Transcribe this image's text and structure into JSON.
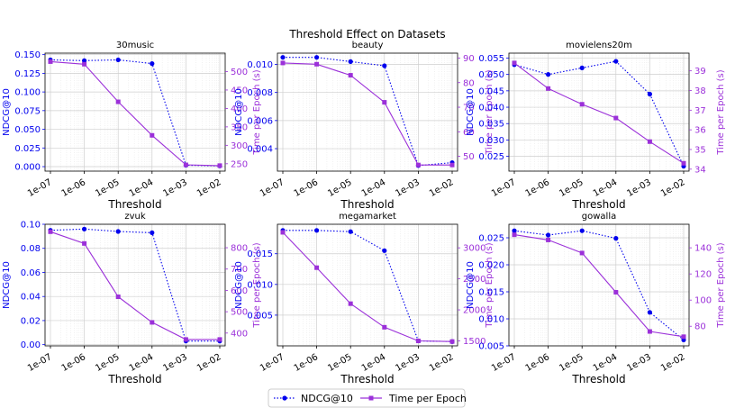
{
  "figure": {
    "title": "Threshold Effect on Datasets",
    "legend": [
      {
        "label": "NDCG@10",
        "color": "#0000ee",
        "style": "dotted",
        "marker": "circle"
      },
      {
        "label": "Time per Epoch",
        "color": "#9b30d9",
        "style": "solid",
        "marker": "square"
      }
    ],
    "legend_placement": "bottom-center"
  },
  "chart_data": [
    {
      "type": "line",
      "title": "30music",
      "categories": [
        "1e-07",
        "1e-06",
        "1e-05",
        "1e-04",
        "1e-03",
        "1e-02"
      ],
      "xlabel": "Threshold",
      "ylabel": "NDCG@10",
      "y2label": "Time per Epoch (s)",
      "ylim": [
        -0.006,
        0.152
      ],
      "yticks": [
        0.0,
        0.025,
        0.05,
        0.075,
        0.1,
        0.125,
        0.15
      ],
      "ytick_labels": [
        "0.000",
        "0.025",
        "0.050",
        "0.075",
        "0.100",
        "0.125",
        "0.150"
      ],
      "y2lim": [
        230,
        550
      ],
      "y2ticks": [
        250,
        300,
        350,
        400,
        450,
        500
      ],
      "series": [
        {
          "name": "NDCG@10",
          "axis": "left",
          "values": [
            0.143,
            0.142,
            0.143,
            0.138,
            0.002,
            0.001
          ]
        },
        {
          "name": "Time per Epoch",
          "axis": "right",
          "values": [
            527,
            520,
            418,
            327,
            247,
            245
          ]
        }
      ]
    },
    {
      "type": "line",
      "title": "beauty",
      "categories": [
        "1e-07",
        "1e-06",
        "1e-05",
        "1e-04",
        "1e-03",
        "1e-02"
      ],
      "xlabel": "Threshold",
      "ylabel": "NDCG@10",
      "y2label": "Time per Epoch (s)",
      "ylim": [
        0.0024,
        0.0108
      ],
      "yticks": [
        0.004,
        0.006,
        0.008,
        0.01
      ],
      "ytick_labels": [
        "0.004",
        "0.006",
        "0.008",
        "0.010"
      ],
      "y2lim": [
        44,
        92
      ],
      "y2ticks": [
        50,
        60,
        70,
        80,
        90
      ],
      "series": [
        {
          "name": "NDCG@10",
          "axis": "left",
          "values": [
            0.0105,
            0.0105,
            0.0102,
            0.0099,
            0.0028,
            0.003
          ]
        },
        {
          "name": "Time per Epoch",
          "axis": "right",
          "values": [
            88,
            87.5,
            83,
            72,
            46.5,
            46.5
          ]
        }
      ]
    },
    {
      "type": "line",
      "title": "movielens20m",
      "categories": [
        "1e-07",
        "1e-06",
        "1e-05",
        "1e-04",
        "1e-03",
        "1e-02"
      ],
      "xlabel": "Threshold",
      "ylabel": "NDCG@10",
      "y2label": "Time per Epoch (s)",
      "ylim": [
        0.0205,
        0.0565
      ],
      "yticks": [
        0.025,
        0.03,
        0.035,
        0.04,
        0.045,
        0.05,
        0.055
      ],
      "ytick_labels": [
        "0.025",
        "0.030",
        "0.035",
        "0.040",
        "0.045",
        "0.050",
        "0.055"
      ],
      "y2lim": [
        33.9,
        39.9
      ],
      "y2ticks": [
        34,
        35,
        36,
        37,
        38,
        39
      ],
      "series": [
        {
          "name": "NDCG@10",
          "axis": "left",
          "values": [
            0.053,
            0.05,
            0.052,
            0.054,
            0.044,
            0.022
          ]
        },
        {
          "name": "Time per Epoch",
          "axis": "right",
          "values": [
            39.4,
            38.1,
            37.3,
            36.6,
            35.4,
            34.3
          ]
        }
      ]
    },
    {
      "type": "line",
      "title": "zvuk",
      "categories": [
        "1e-07",
        "1e-06",
        "1e-05",
        "1e-04",
        "1e-03",
        "1e-02"
      ],
      "xlabel": "Threshold",
      "ylabel": "NDCG@10",
      "y2label": "Time per Epoch (s)",
      "ylim": [
        -0.001,
        0.1
      ],
      "yticks": [
        0.0,
        0.02,
        0.04,
        0.06,
        0.08,
        0.1
      ],
      "ytick_labels": [
        "0.00",
        "0.02",
        "0.04",
        "0.06",
        "0.08",
        "0.10"
      ],
      "y2lim": [
        340,
        910
      ],
      "y2ticks": [
        400,
        500,
        600,
        700,
        800
      ],
      "series": [
        {
          "name": "NDCG@10",
          "axis": "left",
          "values": [
            0.095,
            0.096,
            0.094,
            0.093,
            0.003,
            0.003
          ]
        },
        {
          "name": "Time per Epoch",
          "axis": "right",
          "values": [
            875,
            820,
            570,
            450,
            370,
            370
          ]
        }
      ]
    },
    {
      "type": "line",
      "title": "megamarket",
      "categories": [
        "1e-07",
        "1e-06",
        "1e-05",
        "1e-04",
        "1e-03",
        "1e-02"
      ],
      "xlabel": "Threshold",
      "ylabel": "NDCG@10",
      "y2label": "Time per Epoch (s)",
      "ylim": [
        0.0,
        0.0198
      ],
      "yticks": [
        0.005,
        0.01,
        0.015
      ],
      "ytick_labels": [
        "0.005",
        "0.010",
        "0.015"
      ],
      "y2lim": [
        1420,
        3380
      ],
      "y2ticks": [
        1500,
        2000,
        2500,
        3000
      ],
      "series": [
        {
          "name": "NDCG@10",
          "axis": "left",
          "values": [
            0.0188,
            0.0188,
            0.0186,
            0.0155,
            0.0008,
            0.0007
          ]
        },
        {
          "name": "Time per Epoch",
          "axis": "right",
          "values": [
            3250,
            2680,
            2100,
            1720,
            1500,
            1490
          ]
        }
      ]
    },
    {
      "type": "line",
      "title": "gowalla",
      "categories": [
        "1e-07",
        "1e-06",
        "1e-05",
        "1e-04",
        "1e-03",
        "1e-02"
      ],
      "xlabel": "Threshold",
      "ylabel": "NDCG@10",
      "y2label": "Time per Epoch (s)",
      "ylim": [
        0.005,
        0.0275
      ],
      "yticks": [
        0.005,
        0.01,
        0.015,
        0.02,
        0.025
      ],
      "ytick_labels": [
        "0.005",
        "0.010",
        "0.015",
        "0.020",
        "0.025"
      ],
      "y2lim": [
        65,
        158
      ],
      "y2ticks": [
        80,
        100,
        120,
        140
      ],
      "series": [
        {
          "name": "NDCG@10",
          "axis": "left",
          "values": [
            0.0263,
            0.0255,
            0.0263,
            0.0249,
            0.0112,
            0.0061
          ]
        },
        {
          "name": "Time per Epoch",
          "axis": "right",
          "values": [
            150,
            146,
            136,
            106,
            76,
            72
          ]
        }
      ]
    }
  ]
}
